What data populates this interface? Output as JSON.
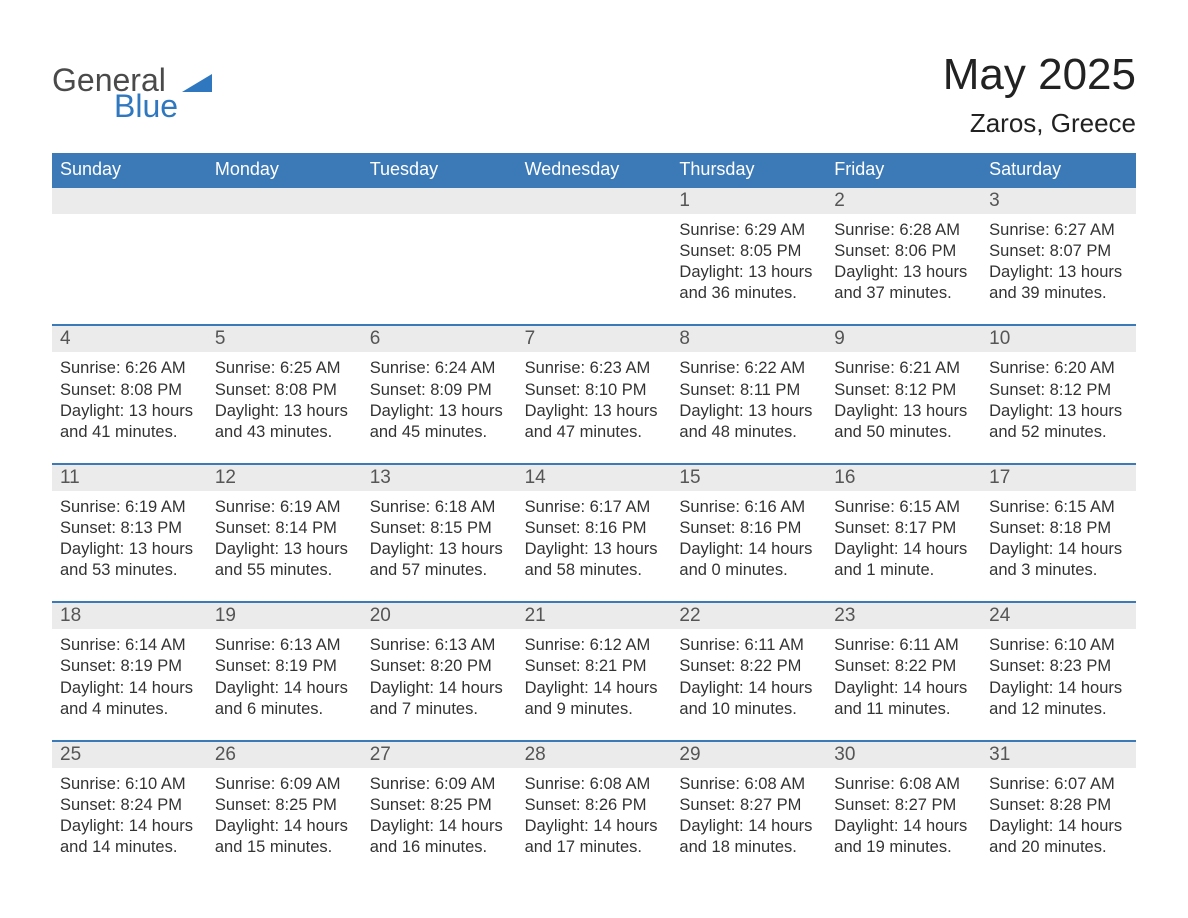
{
  "colors": {
    "header_bg": "#3b79b7",
    "header_text": "#ffffff",
    "row_accent": "#3b79b7",
    "daynum_bg": "#ebebeb",
    "daynum_text": "#555555",
    "body_text": "#333333",
    "logo_gray": "#4a4a4a",
    "logo_blue": "#2f78bf",
    "page_bg": "#ffffff"
  },
  "logo": {
    "word1": "General",
    "word2": "Blue"
  },
  "title": "May 2025",
  "location": "Zaros, Greece",
  "weekdays": [
    "Sunday",
    "Monday",
    "Tuesday",
    "Wednesday",
    "Thursday",
    "Friday",
    "Saturday"
  ],
  "layout": {
    "columns": 7,
    "rows": 5,
    "first_weekday_index": 4,
    "font_family": "Arial",
    "title_fontsize": 44,
    "location_fontsize": 26,
    "weekday_fontsize": 18,
    "daynum_fontsize": 19,
    "body_fontsize": 16.5
  },
  "weeks": [
    {
      "days": [
        null,
        null,
        null,
        null,
        {
          "n": "1",
          "sunrise": "6:29 AM",
          "sunset": "8:05 PM",
          "daylight": "13 hours and 36 minutes."
        },
        {
          "n": "2",
          "sunrise": "6:28 AM",
          "sunset": "8:06 PM",
          "daylight": "13 hours and 37 minutes."
        },
        {
          "n": "3",
          "sunrise": "6:27 AM",
          "sunset": "8:07 PM",
          "daylight": "13 hours and 39 minutes."
        }
      ]
    },
    {
      "days": [
        {
          "n": "4",
          "sunrise": "6:26 AM",
          "sunset": "8:08 PM",
          "daylight": "13 hours and 41 minutes."
        },
        {
          "n": "5",
          "sunrise": "6:25 AM",
          "sunset": "8:08 PM",
          "daylight": "13 hours and 43 minutes."
        },
        {
          "n": "6",
          "sunrise": "6:24 AM",
          "sunset": "8:09 PM",
          "daylight": "13 hours and 45 minutes."
        },
        {
          "n": "7",
          "sunrise": "6:23 AM",
          "sunset": "8:10 PM",
          "daylight": "13 hours and 47 minutes."
        },
        {
          "n": "8",
          "sunrise": "6:22 AM",
          "sunset": "8:11 PM",
          "daylight": "13 hours and 48 minutes."
        },
        {
          "n": "9",
          "sunrise": "6:21 AM",
          "sunset": "8:12 PM",
          "daylight": "13 hours and 50 minutes."
        },
        {
          "n": "10",
          "sunrise": "6:20 AM",
          "sunset": "8:12 PM",
          "daylight": "13 hours and 52 minutes."
        }
      ]
    },
    {
      "days": [
        {
          "n": "11",
          "sunrise": "6:19 AM",
          "sunset": "8:13 PM",
          "daylight": "13 hours and 53 minutes."
        },
        {
          "n": "12",
          "sunrise": "6:19 AM",
          "sunset": "8:14 PM",
          "daylight": "13 hours and 55 minutes."
        },
        {
          "n": "13",
          "sunrise": "6:18 AM",
          "sunset": "8:15 PM",
          "daylight": "13 hours and 57 minutes."
        },
        {
          "n": "14",
          "sunrise": "6:17 AM",
          "sunset": "8:16 PM",
          "daylight": "13 hours and 58 minutes."
        },
        {
          "n": "15",
          "sunrise": "6:16 AM",
          "sunset": "8:16 PM",
          "daylight": "14 hours and 0 minutes."
        },
        {
          "n": "16",
          "sunrise": "6:15 AM",
          "sunset": "8:17 PM",
          "daylight": "14 hours and 1 minute."
        },
        {
          "n": "17",
          "sunrise": "6:15 AM",
          "sunset": "8:18 PM",
          "daylight": "14 hours and 3 minutes."
        }
      ]
    },
    {
      "days": [
        {
          "n": "18",
          "sunrise": "6:14 AM",
          "sunset": "8:19 PM",
          "daylight": "14 hours and 4 minutes."
        },
        {
          "n": "19",
          "sunrise": "6:13 AM",
          "sunset": "8:19 PM",
          "daylight": "14 hours and 6 minutes."
        },
        {
          "n": "20",
          "sunrise": "6:13 AM",
          "sunset": "8:20 PM",
          "daylight": "14 hours and 7 minutes."
        },
        {
          "n": "21",
          "sunrise": "6:12 AM",
          "sunset": "8:21 PM",
          "daylight": "14 hours and 9 minutes."
        },
        {
          "n": "22",
          "sunrise": "6:11 AM",
          "sunset": "8:22 PM",
          "daylight": "14 hours and 10 minutes."
        },
        {
          "n": "23",
          "sunrise": "6:11 AM",
          "sunset": "8:22 PM",
          "daylight": "14 hours and 11 minutes."
        },
        {
          "n": "24",
          "sunrise": "6:10 AM",
          "sunset": "8:23 PM",
          "daylight": "14 hours and 12 minutes."
        }
      ]
    },
    {
      "days": [
        {
          "n": "25",
          "sunrise": "6:10 AM",
          "sunset": "8:24 PM",
          "daylight": "14 hours and 14 minutes."
        },
        {
          "n": "26",
          "sunrise": "6:09 AM",
          "sunset": "8:25 PM",
          "daylight": "14 hours and 15 minutes."
        },
        {
          "n": "27",
          "sunrise": "6:09 AM",
          "sunset": "8:25 PM",
          "daylight": "14 hours and 16 minutes."
        },
        {
          "n": "28",
          "sunrise": "6:08 AM",
          "sunset": "8:26 PM",
          "daylight": "14 hours and 17 minutes."
        },
        {
          "n": "29",
          "sunrise": "6:08 AM",
          "sunset": "8:27 PM",
          "daylight": "14 hours and 18 minutes."
        },
        {
          "n": "30",
          "sunrise": "6:08 AM",
          "sunset": "8:27 PM",
          "daylight": "14 hours and 19 minutes."
        },
        {
          "n": "31",
          "sunrise": "6:07 AM",
          "sunset": "8:28 PM",
          "daylight": "14 hours and 20 minutes."
        }
      ]
    }
  ],
  "labels": {
    "sunrise": "Sunrise:",
    "sunset": "Sunset:",
    "daylight": "Daylight:"
  }
}
